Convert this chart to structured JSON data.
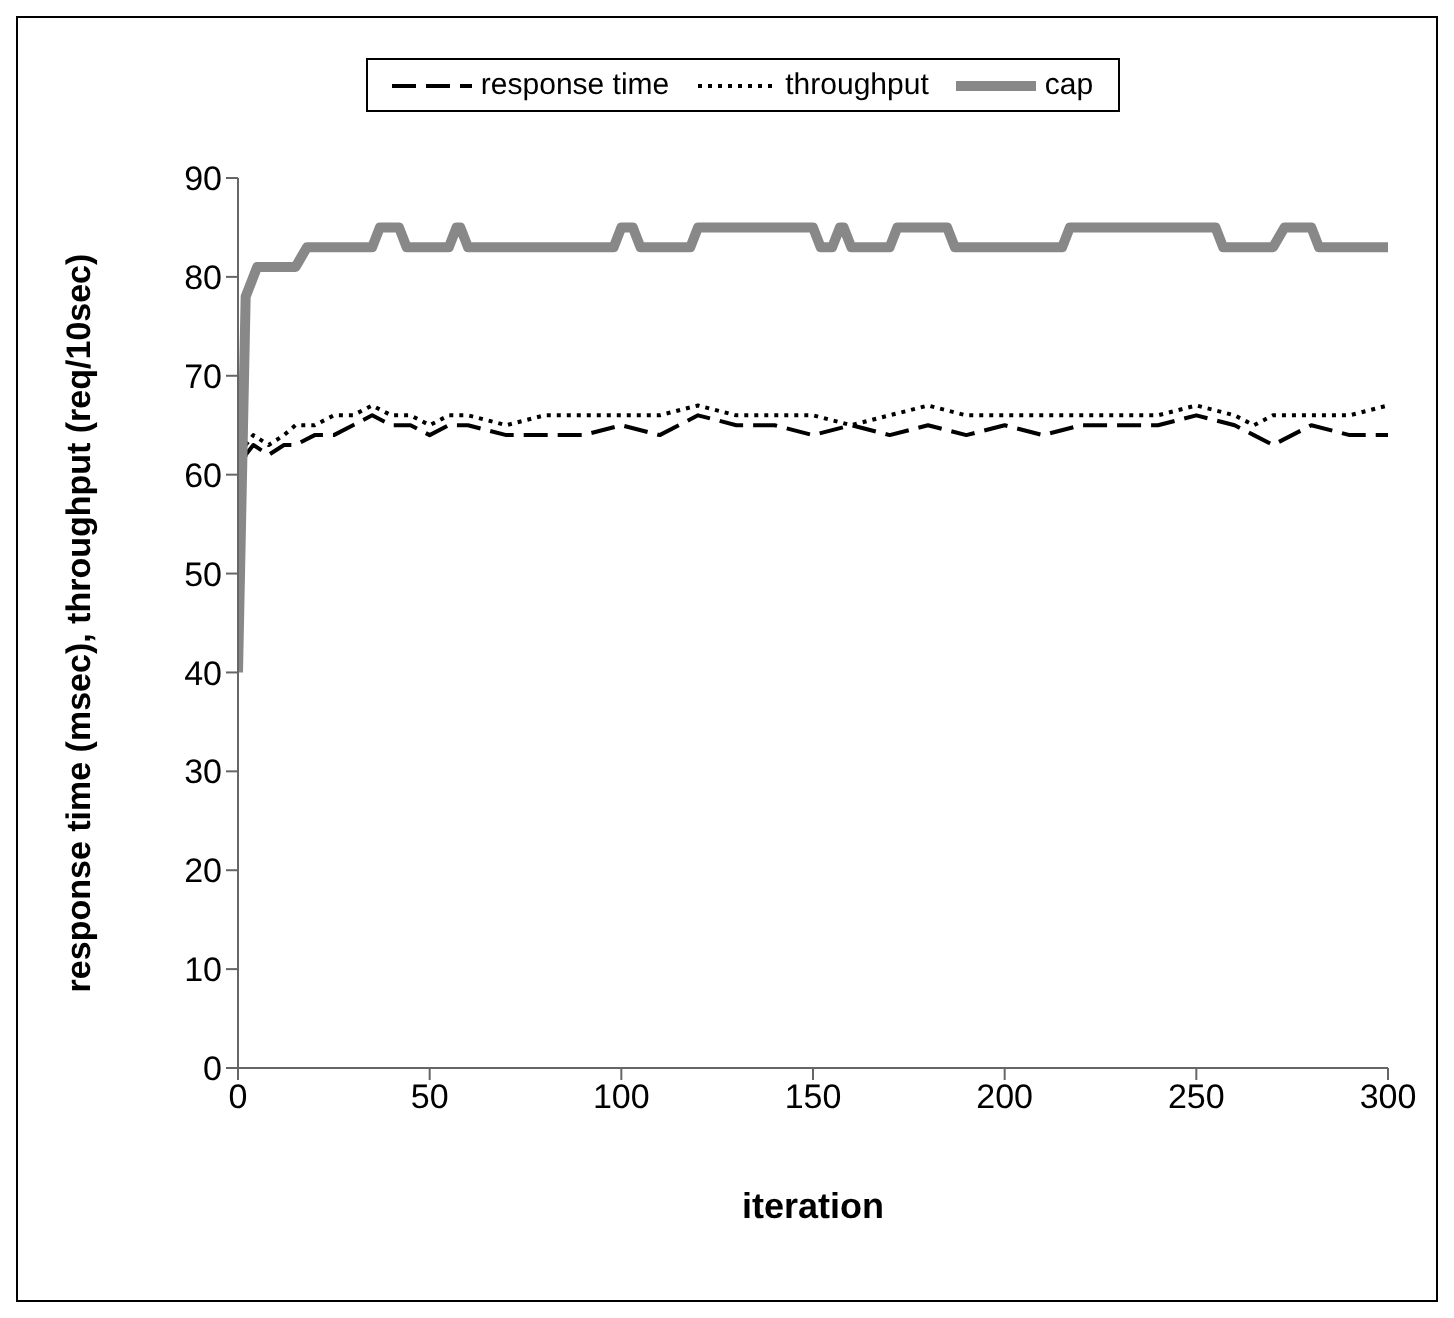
{
  "chart_data": {
    "type": "line",
    "xlabel": "iteration",
    "ylabel": "response time (msec), throughput (req/10sec)",
    "xlim": [
      0,
      300
    ],
    "xticks": [
      0,
      50,
      100,
      150,
      200,
      250,
      300
    ],
    "ylim": [
      0,
      90
    ],
    "yticks": [
      0,
      10,
      20,
      30,
      40,
      50,
      60,
      70,
      80,
      90
    ],
    "grid": false,
    "legend": "top",
    "marker": "none",
    "series": [
      {
        "name": "response time",
        "color": "#000000",
        "line_style": "dashed",
        "x": [
          0,
          2,
          4,
          8,
          12,
          15,
          20,
          25,
          30,
          35,
          40,
          45,
          50,
          55,
          60,
          70,
          80,
          90,
          100,
          110,
          120,
          130,
          140,
          150,
          160,
          170,
          180,
          190,
          200,
          210,
          220,
          230,
          240,
          250,
          260,
          265,
          270,
          280,
          290,
          300
        ],
        "values": [
          55,
          62,
          63,
          62,
          63,
          63,
          64,
          64,
          65,
          66,
          65,
          65,
          64,
          65,
          65,
          64,
          64,
          64,
          65,
          64,
          66,
          65,
          65,
          64,
          65,
          64,
          65,
          64,
          65,
          64,
          65,
          65,
          65,
          66,
          65,
          64,
          63,
          65,
          64,
          64
        ]
      },
      {
        "name": "throughput",
        "color": "#000000",
        "line_style": "dotted",
        "x": [
          0,
          2,
          4,
          8,
          12,
          15,
          20,
          25,
          30,
          35,
          40,
          45,
          50,
          55,
          60,
          70,
          80,
          90,
          100,
          110,
          120,
          130,
          140,
          150,
          160,
          170,
          180,
          190,
          200,
          210,
          220,
          230,
          240,
          250,
          260,
          265,
          270,
          280,
          290,
          300
        ],
        "values": [
          58,
          63,
          64,
          63,
          64,
          65,
          65,
          66,
          66,
          67,
          66,
          66,
          65,
          66,
          66,
          65,
          66,
          66,
          66,
          66,
          67,
          66,
          66,
          66,
          65,
          66,
          67,
          66,
          66,
          66,
          66,
          66,
          66,
          67,
          66,
          65,
          66,
          66,
          66,
          67
        ]
      },
      {
        "name": "cap",
        "color": "#888888",
        "line_style": "solid",
        "x": [
          0,
          2,
          5,
          15,
          18,
          35,
          37,
          42,
          44,
          55,
          57,
          58,
          60,
          98,
          100,
          103,
          105,
          118,
          120,
          150,
          152,
          155,
          157,
          158,
          160,
          170,
          172,
          185,
          187,
          215,
          217,
          255,
          257,
          270,
          273,
          280,
          282,
          300
        ],
        "values": [
          40,
          78,
          81,
          81,
          83,
          83,
          85,
          85,
          83,
          83,
          85,
          85,
          83,
          83,
          85,
          85,
          83,
          83,
          85,
          85,
          83,
          83,
          85,
          85,
          83,
          83,
          85,
          85,
          83,
          83,
          85,
          85,
          83,
          83,
          85,
          85,
          83,
          83
        ]
      }
    ]
  }
}
